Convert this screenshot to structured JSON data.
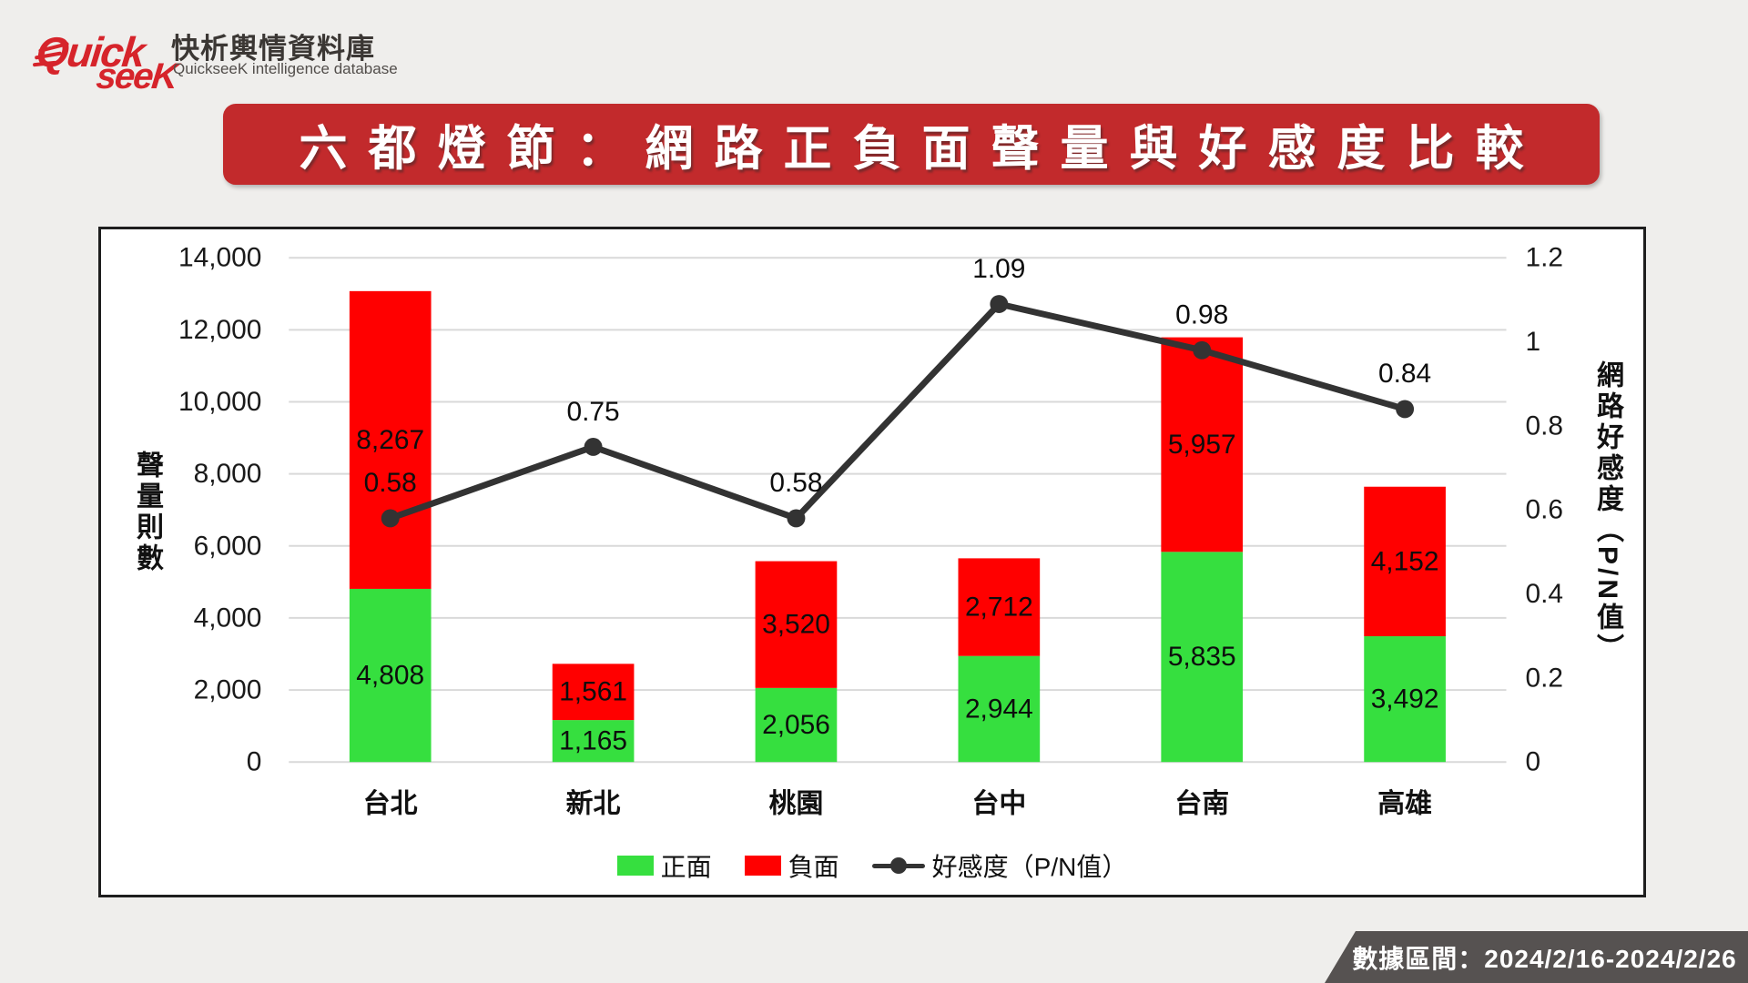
{
  "colors": {
    "banner_red": "#c22a2c",
    "logo_red": "#d6242b",
    "footer_gray": "#565251",
    "grid_gray": "#d9d9d9",
    "text_dark": "#1a1a1a"
  },
  "header": {
    "logo_word_top": "Quick",
    "logo_word_bottom": "seeK",
    "brand_title": "快析輿情資料庫",
    "brand_subtitle": "QuickseeK intelligence database"
  },
  "title_banner": {
    "text": "六都燈節：網路正負面聲量與好感度比較"
  },
  "footer": {
    "data_range": "數據區間：2024/2/16-2024/2/26"
  },
  "chart_data": {
    "type": "combo",
    "categories": [
      "台北",
      "新北",
      "桃園",
      "台中",
      "台南",
      "高雄"
    ],
    "series": [
      {
        "name": "正面",
        "type": "bar",
        "stacked": true,
        "axis": "left",
        "color": "#36df3f",
        "values": [
          4808,
          1165,
          2056,
          2944,
          5835,
          3492
        ]
      },
      {
        "name": "負面",
        "type": "bar",
        "stacked": true,
        "axis": "left",
        "color": "#ff0000",
        "values": [
          8267,
          1561,
          3520,
          2712,
          5957,
          4152
        ]
      },
      {
        "name": "好感度（P/N值）",
        "type": "line",
        "axis": "right",
        "color": "#333333",
        "values": [
          0.58,
          0.75,
          0.58,
          1.09,
          0.98,
          0.84
        ]
      }
    ],
    "left_axis": {
      "label": "聲量則數",
      "min": 0,
      "max": 14000,
      "tick_step": 2000,
      "ticks": [
        "0",
        "2,000",
        "4,000",
        "6,000",
        "8,000",
        "10,000",
        "12,000",
        "14,000"
      ]
    },
    "right_axis": {
      "label": "網路好感度（P/N值）",
      "min": 0,
      "max": 1.2,
      "tick_step": 0.2,
      "ticks": [
        "0",
        "0.2",
        "0.4",
        "0.6",
        "0.8",
        "1",
        "1.2"
      ]
    },
    "grid": "horizontal",
    "legend_position": "bottom"
  }
}
